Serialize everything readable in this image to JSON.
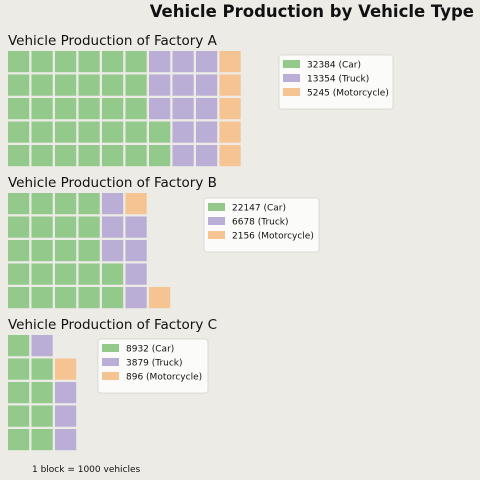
{
  "title": "Vehicle Production by Vehicle Type",
  "footnote": "1 block = 1000 vehicles",
  "colors": {
    "Car": "#93c98b",
    "Truck": "#bbaed6",
    "Motorcycle": "#f5c492",
    "background": "#ecebe6"
  },
  "chart_data": [
    {
      "type": "waffle",
      "title": "Vehicle Production of Factory A",
      "unit": "1 block = 1000 vehicles",
      "categories": [
        "Car",
        "Truck",
        "Motorcycle"
      ],
      "values": [
        32384,
        13354,
        5245
      ],
      "blocks": [
        32,
        13,
        5
      ],
      "legend": [
        "32384 (Car)",
        "13354 (Truck)",
        "5245 (Motorcycle)"
      ],
      "legend_placement": "right"
    },
    {
      "type": "waffle",
      "title": "Vehicle Production of Factory B",
      "unit": "1 block = 1000 vehicles",
      "categories": [
        "Car",
        "Truck",
        "Motorcycle"
      ],
      "values": [
        22147,
        6678,
        2156
      ],
      "blocks": [
        22,
        7,
        2
      ],
      "legend": [
        "22147 (Car)",
        "6678 (Truck)",
        "2156 (Motorcycle)"
      ],
      "legend_placement": "right"
    },
    {
      "type": "waffle",
      "title": "Vehicle Production of Factory C",
      "unit": "1 block = 1000 vehicles",
      "categories": [
        "Car",
        "Truck",
        "Motorcycle"
      ],
      "values": [
        8932,
        3879,
        896
      ],
      "blocks": [
        9,
        4,
        1
      ],
      "legend": [
        "8932 (Car)",
        "3879 (Truck)",
        "896 (Motorcycle)"
      ],
      "legend_placement": "right"
    }
  ]
}
